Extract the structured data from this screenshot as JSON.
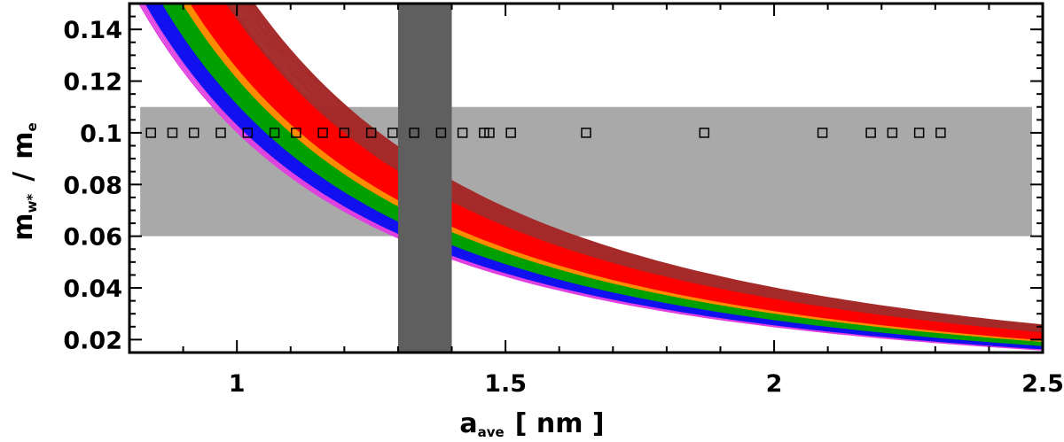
{
  "chart_data": {
    "type": "line",
    "title": "",
    "xlabel": {
      "main": "a",
      "sub": "ave",
      "unit": "[ nm ]"
    },
    "ylabel": {
      "main": "m",
      "sub_num": "w*",
      "sep": "/",
      "main2": "m",
      "sub_den": "e"
    },
    "xlim": [
      0.8,
      2.5
    ],
    "ylim": [
      0.015,
      0.15
    ],
    "x_ticks": [
      1,
      1.5,
      2,
      2.5
    ],
    "x_tick_labels": [
      "1",
      "1.5",
      "2",
      "2.5"
    ],
    "y_ticks": [
      0.02,
      0.04,
      0.06,
      0.08,
      0.1,
      0.12,
      0.14
    ],
    "y_tick_labels": [
      "0.02",
      "0.04",
      "0.06",
      "0.08",
      "0.1",
      "0.12",
      "0.14"
    ],
    "grid": false,
    "legend": "none",
    "colors": {
      "magenta": "#e040e0",
      "blue": "#1010f0",
      "green": "#00a000",
      "orange": "#ff8c00",
      "red": "#ff0000",
      "darkred": "#a52a2a",
      "band_gray": "#a9a9a9",
      "vband_gray": "#5f5f5f"
    },
    "model": "m = k / a^2",
    "series": [
      {
        "color": "magenta",
        "k_range": [
          0.1005,
          0.1045
        ],
        "count": 5
      },
      {
        "color": "blue",
        "k_range": [
          0.1035,
          0.1125
        ],
        "count": 12
      },
      {
        "color": "green",
        "k_range": [
          0.1115,
          0.1225
        ],
        "count": 22
      },
      {
        "color": "orange",
        "k_range": [
          0.1215,
          0.1265
        ],
        "count": 8
      },
      {
        "color": "red",
        "k_range": [
          0.1255,
          0.1455
        ],
        "count": 40
      },
      {
        "color": "darkred",
        "k_range": [
          0.1445,
          0.1595
        ],
        "count": 14
      }
    ],
    "horizontal_band": {
      "y_range": [
        0.06,
        0.11
      ],
      "x_range": [
        0.82,
        2.48
      ],
      "color": "band_gray"
    },
    "vertical_band": {
      "x_range": [
        1.3,
        1.4
      ],
      "color": "vband_gray"
    },
    "markers": {
      "shape": "square",
      "y": 0.1,
      "x": [
        0.84,
        0.88,
        0.92,
        0.97,
        1.02,
        1.07,
        1.11,
        1.16,
        1.2,
        1.25,
        1.29,
        1.33,
        1.38,
        1.42,
        1.46,
        1.47,
        1.51,
        1.65,
        1.87,
        2.09,
        2.18,
        2.22,
        2.27,
        2.31
      ]
    }
  }
}
